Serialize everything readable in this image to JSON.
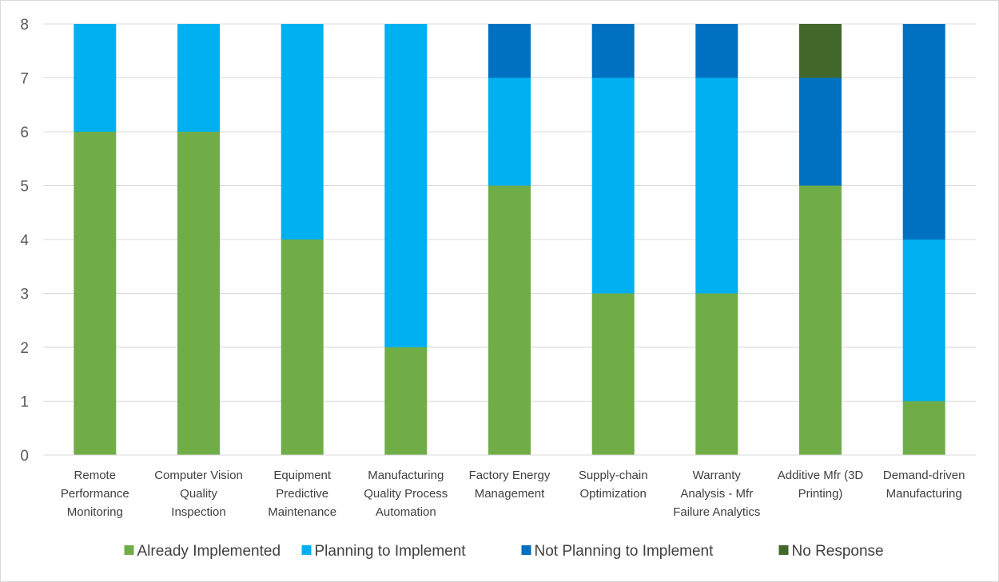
{
  "chart_data": {
    "type": "bar",
    "stacked": true,
    "categories": [
      "Remote Performance Monitoring",
      "Computer Vision Quality Inspection",
      "Equipment Predictive Maintenance",
      "Manufacturing Quality Process Automation",
      "Factory Energy Management",
      "Supply-chain Optimization",
      "Warranty Analysis - Mfr Failure Analytics",
      "Additive Mfr (3D Printing)",
      "Demand-driven Manufacturing"
    ],
    "category_lines": [
      [
        "Remote",
        "Performance",
        "Monitoring"
      ],
      [
        "Computer Vision",
        "Quality",
        "Inspection"
      ],
      [
        "Equipment",
        "Predictive",
        "Maintenance"
      ],
      [
        "Manufacturing",
        "Quality Process",
        "Automation"
      ],
      [
        "Factory Energy",
        "Management"
      ],
      [
        "Supply-chain",
        "Optimization"
      ],
      [
        "Warranty",
        "Analysis - Mfr",
        "Failure Analytics"
      ],
      [
        "Additive Mfr (3D",
        "Printing)"
      ],
      [
        "Demand-driven",
        "Manufacturing"
      ]
    ],
    "series": [
      {
        "name": "Already Implemented",
        "color": "#70ad47",
        "values": [
          6,
          6,
          4,
          2,
          5,
          3,
          3,
          5,
          1
        ]
      },
      {
        "name": "Planning to Implement",
        "color": "#00b0f0",
        "values": [
          2,
          2,
          4,
          6,
          2,
          4,
          4,
          0,
          3
        ]
      },
      {
        "name": "Not Planning to Implement",
        "color": "#0070c0",
        "values": [
          0,
          0,
          0,
          0,
          1,
          1,
          1,
          2,
          4
        ]
      },
      {
        "name": "No Response",
        "color": "#41672b",
        "values": [
          0,
          0,
          0,
          0,
          0,
          0,
          0,
          1,
          0
        ]
      }
    ],
    "ylim": [
      0,
      8
    ],
    "yticks": [
      0,
      1,
      2,
      3,
      4,
      5,
      6,
      7,
      8
    ],
    "grid": true,
    "legend_position": "bottom",
    "title": "",
    "xlabel": "",
    "ylabel": ""
  }
}
